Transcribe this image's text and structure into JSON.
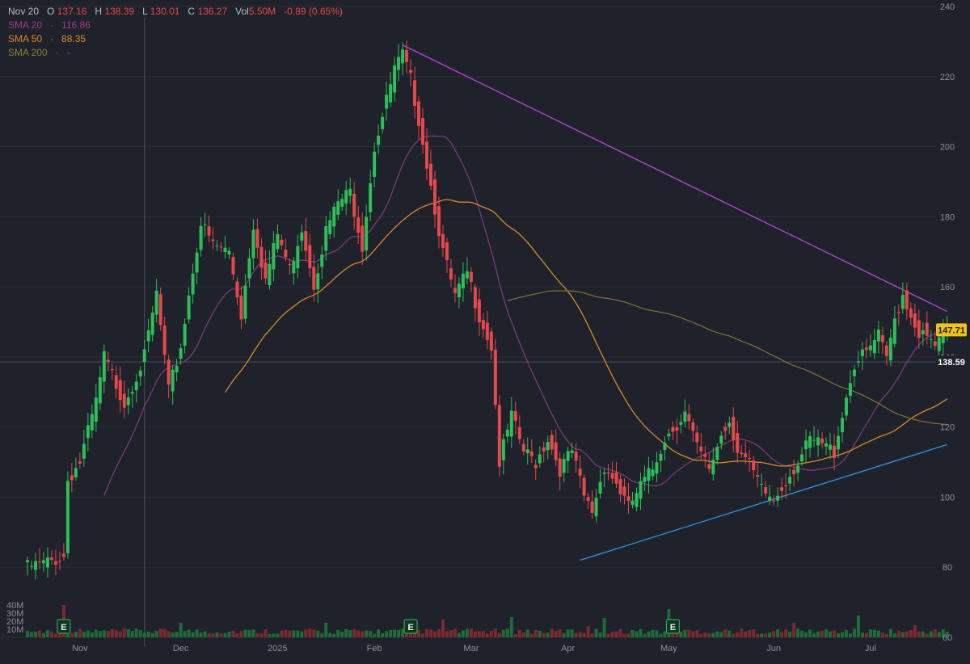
{
  "legend": {
    "date": "Nov 20",
    "open_label": "O",
    "open": "137.16",
    "high_label": "H",
    "high": "138.39",
    "low_label": "L",
    "low": "130.01",
    "close_label": "C",
    "close": "136.27",
    "vol_label": "Vol",
    "vol": "5.50M",
    "change": "-0.89 (0.65%)",
    "sma20_label": "SMA 20",
    "sma20_value": "116.86",
    "sma50_label": "SMA 50",
    "sma50_value": "88.35",
    "sma200_label": "SMA 200",
    "sma200_value": "-",
    "sep": "·"
  },
  "colors": {
    "background": "#1f222a",
    "up": "#2dbf5a",
    "down": "#e5484d",
    "up_volume": "#1f6b3a",
    "down_volume": "#7a2a31",
    "sma20": "#7c3a78",
    "sma50": "#d98a2b",
    "sma200": "#7a6e36",
    "resistance": "#b044d0",
    "support": "#2d8fd6",
    "grid": "#2a2e38",
    "axis_text": "#8a8f9c",
    "last_price_tag": "#f0c419",
    "crosshair_tag": "#ffffff"
  },
  "chart_data": {
    "type": "candlestick",
    "price_axis": {
      "ticks": [
        "240",
        "220",
        "200",
        "180",
        "160",
        "140",
        "120",
        "100",
        "80",
        "60"
      ],
      "range": [
        60,
        240
      ]
    },
    "volume_axis": {
      "ticks": [
        "40M",
        "30M",
        "20M",
        "10M"
      ]
    },
    "time_axis": {
      "ticks": [
        "Nov",
        "Dec",
        "2025",
        "Feb",
        "Mar",
        "Apr",
        "May",
        "Jun",
        "Jul"
      ]
    },
    "last_price": "147.71",
    "crosshair_price": "138.59",
    "earnings_markers": [
      "E",
      "E",
      "E"
    ],
    "anchors": [
      [
        0,
        80
      ],
      [
        4,
        81
      ],
      [
        9,
        83
      ],
      [
        10,
        105
      ],
      [
        13,
        110
      ],
      [
        17,
        127
      ],
      [
        19,
        140
      ],
      [
        24,
        127
      ],
      [
        29,
        140
      ],
      [
        32,
        158
      ],
      [
        35,
        130
      ],
      [
        38,
        143
      ],
      [
        41,
        165
      ],
      [
        43,
        178
      ],
      [
        46,
        172
      ],
      [
        50,
        170
      ],
      [
        53,
        152
      ],
      [
        56,
        178
      ],
      [
        59,
        162
      ],
      [
        62,
        175
      ],
      [
        65,
        165
      ],
      [
        68,
        177
      ],
      [
        71,
        161
      ],
      [
        74,
        176
      ],
      [
        77,
        184
      ],
      [
        80,
        187
      ],
      [
        83,
        172
      ],
      [
        86,
        200
      ],
      [
        89,
        213
      ],
      [
        91,
        222
      ],
      [
        93,
        226
      ],
      [
        95,
        219
      ],
      [
        97,
        208
      ],
      [
        100,
        189
      ],
      [
        103,
        170
      ],
      [
        106,
        157
      ],
      [
        109,
        164
      ],
      [
        112,
        152
      ],
      [
        115,
        143
      ],
      [
        117,
        110
      ],
      [
        120,
        123
      ],
      [
        123,
        113
      ],
      [
        126,
        110
      ],
      [
        129,
        117
      ],
      [
        132,
        108
      ],
      [
        135,
        113
      ],
      [
        138,
        100
      ],
      [
        140,
        96
      ],
      [
        143,
        109
      ],
      [
        146,
        104
      ],
      [
        149,
        97
      ],
      [
        152,
        103
      ],
      [
        155,
        108
      ],
      [
        158,
        117
      ],
      [
        161,
        121
      ],
      [
        163,
        124
      ],
      [
        166,
        114
      ],
      [
        169,
        108
      ],
      [
        172,
        118
      ],
      [
        174,
        122
      ],
      [
        176,
        114
      ],
      [
        179,
        109
      ],
      [
        182,
        102
      ],
      [
        185,
        99
      ],
      [
        188,
        105
      ],
      [
        191,
        110
      ],
      [
        194,
        116
      ],
      [
        197,
        115
      ],
      [
        200,
        113
      ],
      [
        202,
        124
      ],
      [
        205,
        138
      ],
      [
        208,
        141
      ],
      [
        211,
        146
      ],
      [
        213,
        139
      ],
      [
        215,
        151
      ],
      [
        217,
        158
      ],
      [
        219,
        152
      ],
      [
        221,
        147
      ],
      [
        223,
        145
      ],
      [
        225,
        143
      ],
      [
        227,
        146
      ],
      [
        228,
        147.71
      ]
    ],
    "volume_spikes": [
      [
        9,
        40
      ],
      [
        38,
        18
      ],
      [
        74,
        18
      ],
      [
        103,
        22
      ],
      [
        120,
        25
      ],
      [
        139,
        14
      ],
      [
        143,
        24
      ],
      [
        159,
        35
      ],
      [
        190,
        18
      ],
      [
        206,
        27
      ],
      [
        220,
        15
      ]
    ],
    "trendlines": [
      {
        "name": "resistance",
        "from": [
          93,
          229
        ],
        "to": [
          228,
          153
        ]
      },
      {
        "name": "support",
        "from": [
          137,
          82
        ],
        "to": [
          228,
          115
        ]
      }
    ]
  }
}
